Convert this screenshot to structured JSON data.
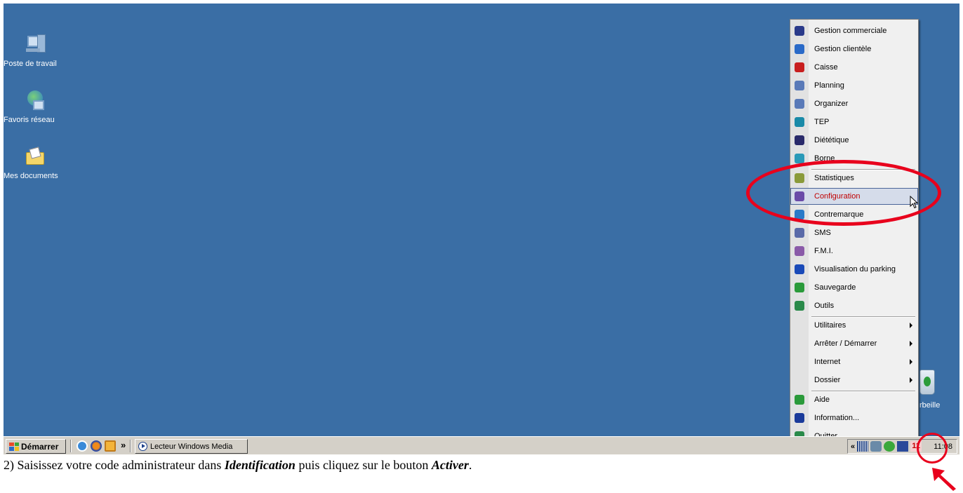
{
  "desktop": {
    "icons": [
      {
        "label": "Poste de travail",
        "icon": "my-computer-icon"
      },
      {
        "label": "Favoris réseau",
        "icon": "network-places-icon"
      },
      {
        "label": "Mes documents",
        "icon": "my-documents-icon"
      }
    ],
    "recycle_bin_label": "rbeille",
    "background_color": "#3a6ea5"
  },
  "context_menu": {
    "items": [
      {
        "label": "Gestion commerciale",
        "icon": "gestion-commerciale-icon",
        "color": "#2a3a8a"
      },
      {
        "label": "Gestion clientèle",
        "icon": "gestion-clientele-icon",
        "color": "#2a6ac8"
      },
      {
        "label": "Caisse",
        "icon": "caisse-icon",
        "color": "#c81e1e"
      },
      {
        "label": "Planning",
        "icon": "planning-icon",
        "color": "#5a7ab8"
      },
      {
        "label": "Organizer",
        "icon": "organizer-icon",
        "color": "#5a7ab8"
      },
      {
        "label": "TEP",
        "icon": "tep-icon",
        "color": "#1a8aa8"
      },
      {
        "label": "Diététique",
        "icon": "dietetique-icon",
        "color": "#2a2a6a"
      },
      {
        "label": "Borne",
        "icon": "borne-icon",
        "color": "#2a9ab8"
      },
      {
        "label": "Statistiques",
        "icon": "statistiques-icon",
        "color": "#8a9a3a"
      },
      {
        "label": "Configuration",
        "icon": "configuration-icon",
        "color": "#6a4aa8",
        "highlighted": true
      },
      {
        "label": "Contremarque",
        "icon": "contremarque-icon",
        "color": "#2a7ac8"
      },
      {
        "label": "SMS",
        "icon": "sms-icon",
        "color": "#5a6aa8"
      },
      {
        "label": "F.M.I.",
        "icon": "fmi-icon",
        "color": "#8a5aa8"
      },
      {
        "label": "Visualisation du parking",
        "icon": "parking-icon",
        "color": "#1a4ab8"
      },
      {
        "label": "Sauvegarde",
        "icon": "sauvegarde-icon",
        "color": "#2a9a3a"
      },
      {
        "label": "Outils",
        "icon": "outils-icon",
        "color": "#2a8a4a"
      },
      {
        "label": "Utilitaires",
        "submenu": true
      },
      {
        "label": "Arrêter / Démarrer",
        "submenu": true
      },
      {
        "label": "Internet",
        "submenu": true
      },
      {
        "label": "Dossier",
        "submenu": true
      },
      {
        "label": "Aide",
        "icon": "aide-icon",
        "color": "#2a9a3a"
      },
      {
        "label": "Information...",
        "icon": "information-icon",
        "color": "#1a3a9a"
      },
      {
        "label": "Quitter",
        "icon": "quitter-icon",
        "color": "#2a8a4a"
      }
    ]
  },
  "taskbar": {
    "start_label": "Démarrer",
    "quicklaunch_more": "»",
    "task_label": "Lecteur Windows Media",
    "tray_expand": "«",
    "clock": "11:08"
  },
  "caption": {
    "prefix": "2)   Saisissez votre code administrateur dans ",
    "bold1": "Identification",
    "middle": " puis cliquez sur le bouton ",
    "bold2": "Activer",
    "suffix": "."
  },
  "colors": {
    "annotation_red": "#e8001c",
    "menu_highlight_text": "#c00000"
  }
}
